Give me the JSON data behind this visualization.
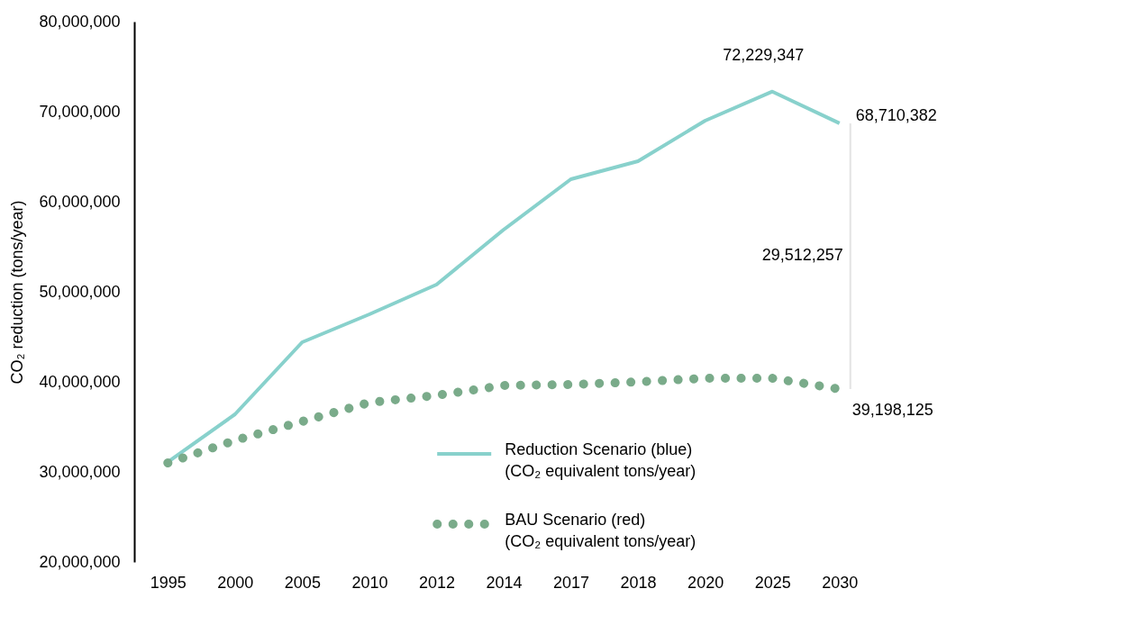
{
  "chart_data": {
    "type": "line",
    "ylabel": "CO₂ reduction (tons/year)",
    "categories": [
      "1995",
      "2000",
      "2005",
      "2010",
      "2012",
      "2014",
      "2017",
      "2018",
      "2020",
      "2025",
      "2030"
    ],
    "series": [
      {
        "name": "Reduction Scenario (blue)\n(CO₂ equivalent tons/year)",
        "color": "#88d1cc",
        "line_style": "solid",
        "values": [
          31100000,
          36400000,
          44400000,
          47500000,
          50800000,
          56900000,
          62500000,
          64500000,
          69000000,
          72229347,
          68710382
        ]
      },
      {
        "name": "BAU Scenario (red)\n(CO₂ equivalent tons/year)",
        "color": "#7aab8a",
        "line_style": "dotted",
        "values": [
          31000000,
          33500000,
          35600000,
          37700000,
          38500000,
          39600000,
          39700000,
          40000000,
          40400000,
          40400000,
          39198125
        ]
      }
    ],
    "ylim": [
      20000000,
      80000000
    ],
    "yticks": [
      {
        "value": 20000000,
        "label": "20,000,000"
      },
      {
        "value": 30000000,
        "label": "30,000,000"
      },
      {
        "value": 40000000,
        "label": "40,000,000"
      },
      {
        "value": 50000000,
        "label": "50,000,000"
      },
      {
        "value": 60000000,
        "label": "60,000,000"
      },
      {
        "value": 70000000,
        "label": "70,000,000"
      },
      {
        "value": 80000000,
        "label": "80,000,000"
      }
    ],
    "grid": false,
    "legend": "bottom",
    "marker": "none",
    "annotations": [
      {
        "text": "72,229,347",
        "x": "2025",
        "y": 72229347
      },
      {
        "text": "68,710,382",
        "x": "2030",
        "y": 68710382
      },
      {
        "text": "39,198,125",
        "x": "2030",
        "y": 39198125
      },
      "29,512,257"
    ]
  }
}
